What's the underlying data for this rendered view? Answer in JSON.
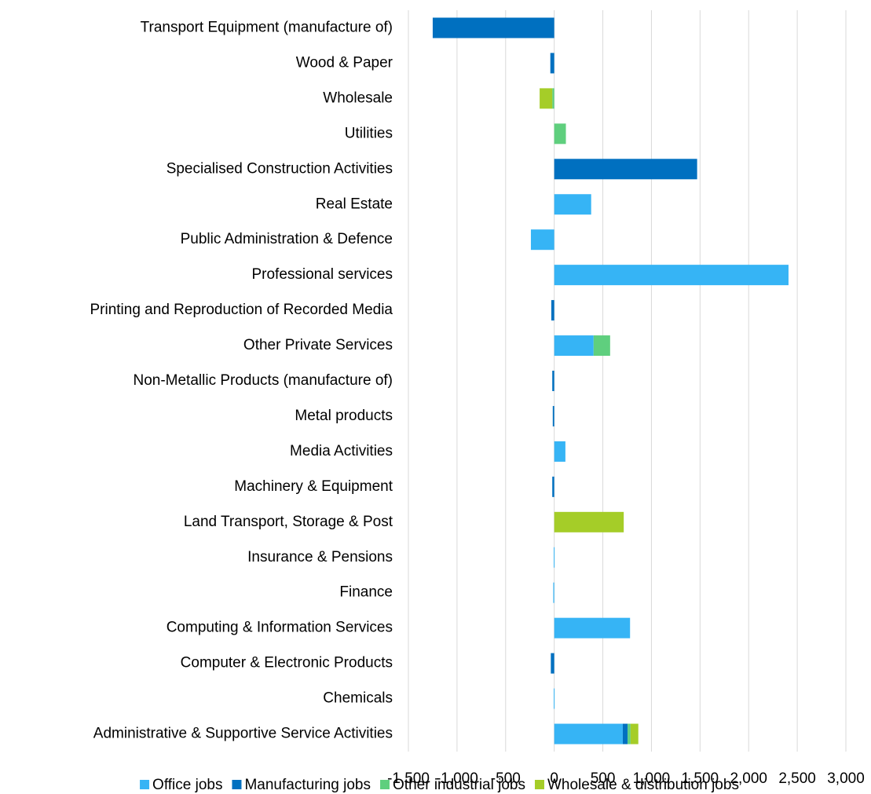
{
  "chart_data": {
    "type": "stacked-bar-horizontal",
    "categories": [
      "Transport Equipment (manufacture of)",
      "Wood & Paper",
      "Wholesale",
      "Utilities",
      "Specialised Construction Activities",
      "Real Estate",
      "Public Administration & Defence",
      "Professional services",
      "Printing and Reproduction of Recorded Media",
      "Other Private Services",
      "Non-Metallic Products (manufacture of)",
      "Metal products",
      "Media Activities",
      "Machinery & Equipment",
      "Land Transport, Storage & Post",
      "Insurance & Pensions",
      "Finance",
      "Computing & Information Services",
      "Computer & Electronic Products",
      "Chemicals",
      "Administrative & Supportive Service Activities"
    ],
    "series": [
      {
        "name": "Office jobs",
        "color": "#36b4f5",
        "values": [
          0,
          0,
          0,
          0,
          0,
          380,
          -240,
          2410,
          0,
          405,
          0,
          0,
          115,
          0,
          0,
          -5,
          -10,
          780,
          0,
          -5,
          705
        ]
      },
      {
        "name": "Manufacturing jobs",
        "color": "#0070c0",
        "values": [
          -1250,
          -40,
          0,
          0,
          1470,
          0,
          0,
          0,
          -30,
          0,
          -20,
          -15,
          0,
          -20,
          0,
          0,
          0,
          0,
          -35,
          0,
          50
        ]
      },
      {
        "name": "Other industrial jobs",
        "color": "#5fcf7e",
        "values": [
          0,
          0,
          -20,
          120,
          0,
          0,
          0,
          0,
          0,
          170,
          0,
          0,
          0,
          0,
          0,
          0,
          0,
          0,
          0,
          0,
          30
        ]
      },
      {
        "name": "Wholesale & distribution jobs",
        "color": "#a5cd28",
        "values": [
          0,
          0,
          -130,
          0,
          0,
          0,
          0,
          0,
          0,
          0,
          0,
          0,
          0,
          0,
          715,
          0,
          0,
          0,
          0,
          0,
          80
        ]
      }
    ],
    "xlim": [
      -1500,
      3000
    ],
    "xticks": [
      {
        "value": -1500,
        "label": "-1,500"
      },
      {
        "value": -1000,
        "label": "-1,000"
      },
      -500,
      0,
      500,
      {
        "value": 1000,
        "label": "1,000"
      },
      {
        "value": 1500,
        "label": "1,500"
      },
      {
        "value": 2000,
        "label": "2,000"
      },
      {
        "value": 2500,
        "label": "2,500"
      },
      {
        "value": 3000,
        "label": "3,000"
      }
    ],
    "grid": true,
    "legend": "bottom"
  }
}
